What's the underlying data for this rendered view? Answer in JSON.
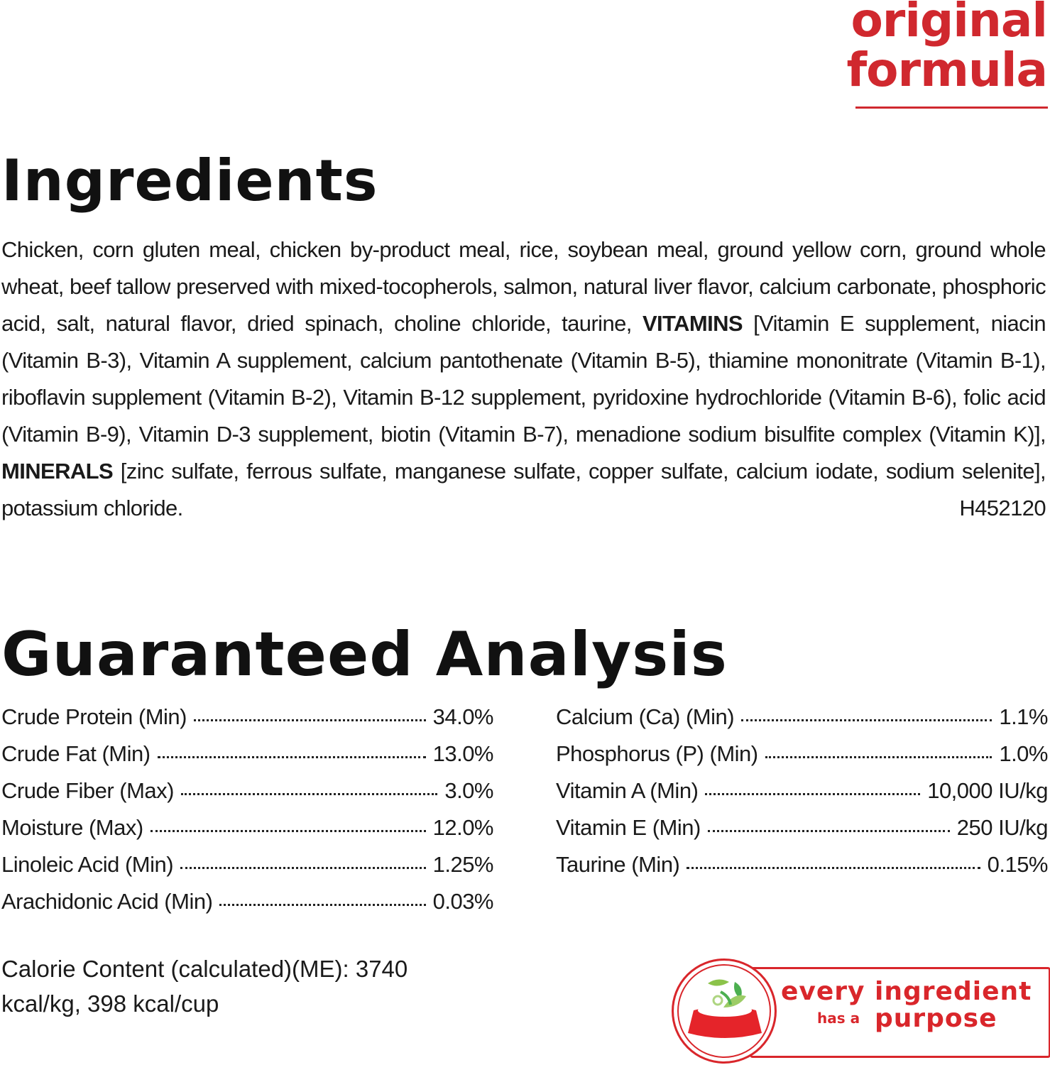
{
  "brand": {
    "line1": "original",
    "line2": "formula",
    "color": "#d0282e"
  },
  "ingredients": {
    "heading": "Ingredients",
    "text_part1": "Chicken, corn gluten meal, chicken by-product meal, rice, soybean meal, ground yellow corn, ground whole wheat, beef tallow preserved with mixed-tocopherols, salmon, natural liver flavor, calcium carbonate, phosphoric acid, salt, natural flavor, dried spinach, choline chloride, taurine, ",
    "vitamins_label": "VITAMINS",
    "text_part2": " [Vitamin E supplement, niacin (Vitamin B-3), Vitamin A supplement, calcium pantothenate (Vitamin B-5), thiamine mononitrate (Vitamin B-1), riboflavin supplement (Vitamin B-2), Vitamin B-12 supplement, pyridoxine hydrochloride (Vitamin B-6), folic acid (Vitamin B-9), Vitamin D-3 supplement, biotin (Vitamin B-7), menadione sodium bisulfite complex (Vitamin K)], ",
    "minerals_label": "MINERALS",
    "text_part3": " [zinc sulfate, ferrous sulfate, manganese sulfate, copper sulfate, calcium iodate, sodium selenite], potassium chloride.",
    "code": "H452120"
  },
  "analysis": {
    "heading": "Guaranteed Analysis",
    "left": [
      {
        "label": "Crude Protein (Min)",
        "value": "34.0%"
      },
      {
        "label": "Crude Fat (Min)",
        "value": "13.0%"
      },
      {
        "label": "Crude Fiber (Max)",
        "value": "3.0%"
      },
      {
        "label": "Moisture (Max)",
        "value": "12.0%"
      },
      {
        "label": "Linoleic Acid (Min)",
        "value": "1.25%"
      },
      {
        "label": "Arachidonic Acid (Min)",
        "value": "0.03%"
      }
    ],
    "right": [
      {
        "label": "Calcium (Ca) (Min)",
        "value": "1.1%"
      },
      {
        "label": "Phosphorus (P) (Min)",
        "value": "1.0%"
      },
      {
        "label": "Vitamin A (Min)",
        "value": "10,000 IU/kg"
      },
      {
        "label": "Vitamin E (Min)",
        "value": "250 IU/kg"
      },
      {
        "label": "Taurine (Min)",
        "value": "0.15%"
      }
    ],
    "calorie": "Calorie Content (calculated)(ME): 3740 kcal/kg, 398 kcal/cup"
  },
  "badge": {
    "line1": "every ingredient",
    "line2a": "has a",
    "line2b": "purpose",
    "icon": "pet-bowl-with-leaves-icon",
    "color": "#d9262b"
  }
}
